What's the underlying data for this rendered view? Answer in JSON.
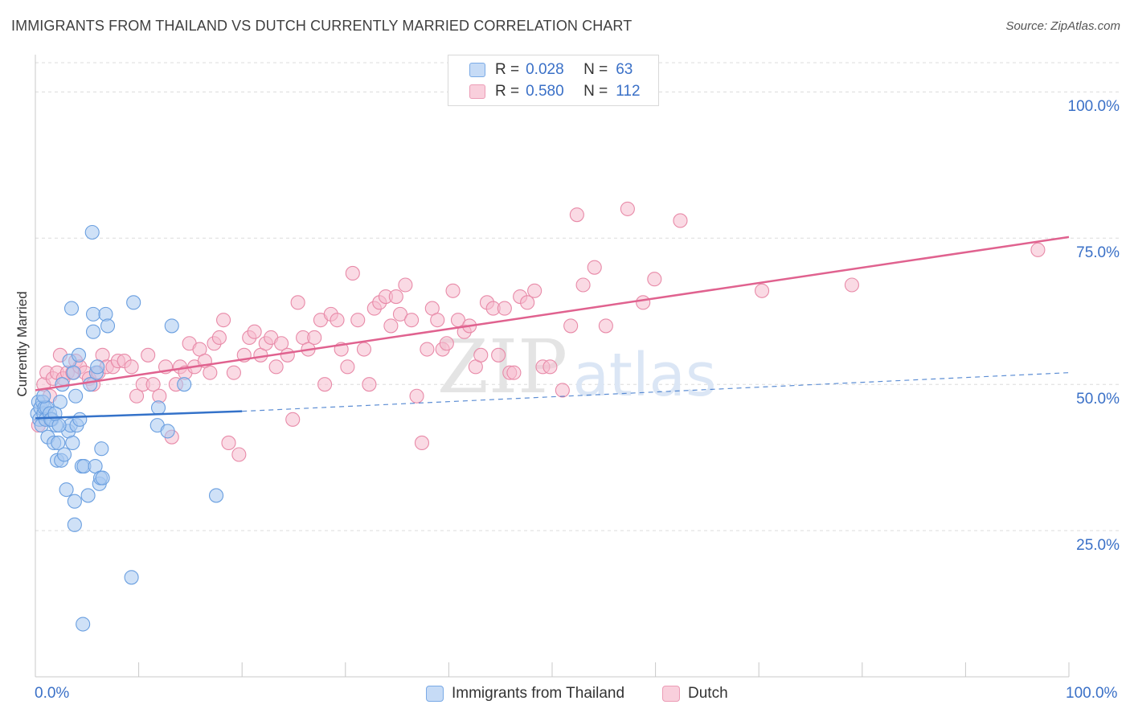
{
  "title": "IMMIGRANTS FROM THAILAND VS DUTCH CURRENTLY MARRIED CORRELATION CHART",
  "source": "Source: ZipAtlas.com",
  "watermark": {
    "zip": "ZIP",
    "atlas": "atlas"
  },
  "legend": {
    "r_label": "R =",
    "n_label": "N =",
    "series": [
      {
        "name": "Immigrants from Thailand",
        "r": "0.028",
        "n": "63",
        "fill": "#a8c8f0",
        "stroke": "#6a9fe0"
      },
      {
        "name": "Dutch",
        "r": "0.580",
        "n": "112",
        "fill": "#f6bccd",
        "stroke": "#e88aa8"
      }
    ]
  },
  "colors": {
    "blue_line": "#3472c9",
    "pink_line": "#e0628f",
    "tick_text": "#3a70c7",
    "grid": "#dddddd"
  },
  "chart_data": {
    "type": "scatter",
    "title": "IMMIGRANTS FROM THAILAND VS DUTCH CURRENTLY MARRIED CORRELATION CHART",
    "xlabel": "",
    "ylabel": "Currently Married",
    "xlim": [
      0,
      100
    ],
    "ylim": [
      0,
      105
    ],
    "x_tick_labels": [
      "0.0%",
      "100.0%"
    ],
    "y_ticks": [
      {
        "value": 25,
        "label": "25.0%"
      },
      {
        "value": 50,
        "label": "50.0%"
      },
      {
        "value": 75,
        "label": "75.0%"
      },
      {
        "value": 100,
        "label": "100.0%"
      }
    ],
    "series": [
      {
        "name": "Immigrants from Thailand",
        "trend": {
          "x0": 0,
          "y0": 44.2,
          "x1": 20,
          "y1": 45.4,
          "dashed_to_x": 100,
          "dashed_to_y": 52.0
        },
        "points": [
          [
            0.2,
            45
          ],
          [
            0.3,
            47
          ],
          [
            0.4,
            44
          ],
          [
            0.5,
            46
          ],
          [
            0.6,
            43
          ],
          [
            0.7,
            47
          ],
          [
            0.8,
            45
          ],
          [
            0.9,
            46
          ],
          [
            1.0,
            44
          ],
          [
            1.1,
            46
          ],
          [
            1.2,
            41
          ],
          [
            1.4,
            45
          ],
          [
            1.6,
            44
          ],
          [
            1.8,
            40
          ],
          [
            2.0,
            43
          ],
          [
            2.1,
            37
          ],
          [
            2.2,
            40
          ],
          [
            2.4,
            47
          ],
          [
            2.5,
            37
          ],
          [
            2.6,
            50
          ],
          [
            2.8,
            38
          ],
          [
            3.0,
            32
          ],
          [
            3.2,
            42
          ],
          [
            3.3,
            54
          ],
          [
            3.4,
            43
          ],
          [
            3.5,
            63
          ],
          [
            3.6,
            40
          ],
          [
            3.7,
            52
          ],
          [
            3.8,
            30
          ],
          [
            3.8,
            26
          ],
          [
            4.0,
            43
          ],
          [
            4.2,
            55
          ],
          [
            4.3,
            44
          ],
          [
            4.5,
            36
          ],
          [
            4.6,
            9
          ],
          [
            4.7,
            36
          ],
          [
            5.1,
            31
          ],
          [
            5.3,
            50
          ],
          [
            5.5,
            76
          ],
          [
            5.6,
            59
          ],
          [
            5.6,
            62
          ],
          [
            5.8,
            36
          ],
          [
            5.9,
            52
          ],
          [
            6.0,
            53
          ],
          [
            6.2,
            33
          ],
          [
            6.3,
            34
          ],
          [
            6.4,
            39
          ],
          [
            6.5,
            34
          ],
          [
            6.8,
            62
          ],
          [
            7.0,
            60
          ],
          [
            9.3,
            17
          ],
          [
            9.5,
            64
          ],
          [
            11.8,
            43
          ],
          [
            11.9,
            46
          ],
          [
            12.8,
            42
          ],
          [
            13.2,
            60
          ],
          [
            14.4,
            50
          ],
          [
            17.5,
            31
          ],
          [
            1.5,
            44
          ],
          [
            0.8,
            48
          ],
          [
            2.3,
            43
          ],
          [
            3.9,
            48
          ],
          [
            1.9,
            45
          ]
        ]
      },
      {
        "name": "Dutch",
        "trend": {
          "x0": 0,
          "y0": 49.0,
          "x1": 100,
          "y1": 75.2
        },
        "points": [
          [
            0.3,
            43
          ],
          [
            0.8,
            50
          ],
          [
            1.1,
            52
          ],
          [
            1.4,
            48
          ],
          [
            1.7,
            51
          ],
          [
            2.1,
            52
          ],
          [
            2.4,
            55
          ],
          [
            2.7,
            51
          ],
          [
            3.1,
            52
          ],
          [
            3.6,
            52
          ],
          [
            3.9,
            54
          ],
          [
            4.3,
            53
          ],
          [
            4.8,
            52
          ],
          [
            5.2,
            51
          ],
          [
            5.6,
            50
          ],
          [
            6.1,
            52
          ],
          [
            6.5,
            55
          ],
          [
            6.9,
            53
          ],
          [
            7.5,
            53
          ],
          [
            8.0,
            54
          ],
          [
            8.6,
            54
          ],
          [
            9.3,
            53
          ],
          [
            9.8,
            48
          ],
          [
            10.4,
            50
          ],
          [
            10.9,
            55
          ],
          [
            11.4,
            50
          ],
          [
            12.0,
            48
          ],
          [
            12.6,
            53
          ],
          [
            13.2,
            41
          ],
          [
            13.6,
            50
          ],
          [
            14.0,
            53
          ],
          [
            14.5,
            52
          ],
          [
            14.9,
            57
          ],
          [
            15.4,
            53
          ],
          [
            15.9,
            56
          ],
          [
            16.4,
            54
          ],
          [
            16.9,
            52
          ],
          [
            17.3,
            57
          ],
          [
            17.8,
            58
          ],
          [
            18.2,
            61
          ],
          [
            18.7,
            40
          ],
          [
            19.2,
            52
          ],
          [
            19.7,
            38
          ],
          [
            20.2,
            55
          ],
          [
            20.7,
            58
          ],
          [
            21.2,
            59
          ],
          [
            21.8,
            55
          ],
          [
            22.3,
            57
          ],
          [
            22.8,
            58
          ],
          [
            23.3,
            53
          ],
          [
            23.8,
            57
          ],
          [
            24.4,
            55
          ],
          [
            24.9,
            44
          ],
          [
            25.4,
            64
          ],
          [
            25.9,
            58
          ],
          [
            26.4,
            56
          ],
          [
            27.0,
            58
          ],
          [
            27.6,
            61
          ],
          [
            28.0,
            50
          ],
          [
            28.6,
            62
          ],
          [
            29.2,
            61
          ],
          [
            29.6,
            56
          ],
          [
            30.2,
            53
          ],
          [
            30.7,
            69
          ],
          [
            31.2,
            61
          ],
          [
            31.8,
            56
          ],
          [
            32.3,
            50
          ],
          [
            32.8,
            63
          ],
          [
            33.3,
            64
          ],
          [
            33.9,
            65
          ],
          [
            34.4,
            60
          ],
          [
            34.9,
            65
          ],
          [
            35.3,
            62
          ],
          [
            35.8,
            67
          ],
          [
            36.4,
            61
          ],
          [
            36.9,
            48
          ],
          [
            37.4,
            40
          ],
          [
            37.9,
            56
          ],
          [
            38.4,
            63
          ],
          [
            38.9,
            61
          ],
          [
            39.4,
            56
          ],
          [
            39.8,
            57
          ],
          [
            40.4,
            66
          ],
          [
            40.9,
            61
          ],
          [
            41.5,
            59
          ],
          [
            42.0,
            60
          ],
          [
            42.6,
            53
          ],
          [
            43.1,
            55
          ],
          [
            43.7,
            64
          ],
          [
            44.3,
            63
          ],
          [
            44.8,
            55
          ],
          [
            45.4,
            63
          ],
          [
            45.9,
            52
          ],
          [
            46.3,
            52
          ],
          [
            46.9,
            65
          ],
          [
            47.6,
            64
          ],
          [
            48.3,
            66
          ],
          [
            49.1,
            53
          ],
          [
            51.0,
            49
          ],
          [
            51.8,
            60
          ],
          [
            52.4,
            79
          ],
          [
            53.0,
            67
          ],
          [
            54.1,
            70
          ],
          [
            55.2,
            60
          ],
          [
            57.3,
            80
          ],
          [
            58.8,
            64
          ],
          [
            59.9,
            68
          ],
          [
            62.4,
            78
          ],
          [
            70.3,
            66
          ],
          [
            79.0,
            67
          ],
          [
            49.8,
            53
          ],
          [
            97.0,
            73
          ]
        ]
      }
    ]
  }
}
